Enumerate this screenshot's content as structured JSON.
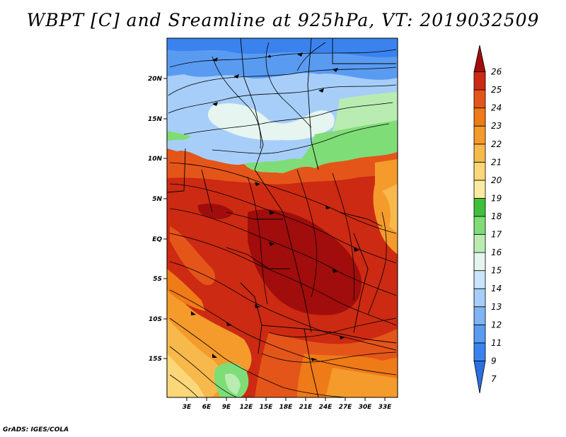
{
  "title": "WBPT [C] and Sreamline at 925hPa, VT: 2019032509",
  "credit": "GrADS: IGES/COLA",
  "map": {
    "lat_labels": [
      "20N",
      "15N",
      "10N",
      "5N",
      "EQ",
      "5S",
      "10S",
      "15S"
    ],
    "lon_labels": [
      "3E",
      "6E",
      "9E",
      "12E",
      "15E",
      "18E",
      "21E",
      "24E",
      "27E",
      "30E",
      "33E"
    ]
  },
  "colorbar": {
    "levels": [
      "7",
      "9",
      "11",
      "12",
      "13",
      "14",
      "15",
      "16",
      "17",
      "18",
      "19",
      "20",
      "21",
      "22",
      "23",
      "24",
      "25",
      "26"
    ],
    "colors": [
      "#2b6fe0",
      "#3a83ee",
      "#5a9bf2",
      "#7fb3f4",
      "#a6cef8",
      "#c9e4fb",
      "#e6f5ef",
      "#b9ecb1",
      "#7fdd77",
      "#3fc03a",
      "#fbeba0",
      "#fcd77a",
      "#f8b94c",
      "#f49b2b",
      "#ef7a18",
      "#e4551a",
      "#cc2a12",
      "#a00d0c"
    ]
  }
}
